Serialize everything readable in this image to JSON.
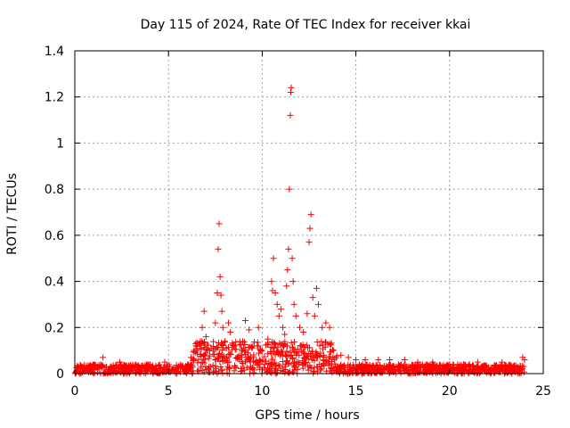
{
  "chart_data": {
    "type": "scatter",
    "title": "Day 115 of 2024, Rate Of TEC Index for receiver kkai",
    "xlabel": "GPS time / hours",
    "ylabel": "ROTI / TECUs",
    "xlim": [
      0,
      25
    ],
    "ylim": [
      0,
      1.4
    ],
    "x_ticks": [
      "0",
      "5",
      "10",
      "15",
      "20",
      "25"
    ],
    "y_ticks": [
      "0",
      "0.2",
      "0.4",
      "0.6",
      "0.8",
      "1",
      "1.2",
      "1.4"
    ],
    "grid": true,
    "marker": "+",
    "color": "#ff0000",
    "baseline_noise": {
      "x_range": [
        0,
        24
      ],
      "y_max": 0.04
    },
    "points": [
      [
        1.5,
        0.07
      ],
      [
        2.4,
        0.05
      ],
      [
        4.8,
        0.05
      ],
      [
        6.2,
        0.07
      ],
      [
        6.5,
        0.1
      ],
      [
        6.7,
        0.14
      ],
      [
        6.8,
        0.2
      ],
      [
        6.9,
        0.27
      ],
      [
        7.0,
        0.16
      ],
      [
        7.2,
        0.1
      ],
      [
        7.5,
        0.22
      ],
      [
        7.6,
        0.35
      ],
      [
        7.65,
        0.54
      ],
      [
        7.7,
        0.65
      ],
      [
        7.75,
        0.42
      ],
      [
        7.8,
        0.34
      ],
      [
        7.85,
        0.27
      ],
      [
        7.9,
        0.2
      ],
      [
        8.0,
        0.14
      ],
      [
        8.2,
        0.22
      ],
      [
        8.3,
        0.18
      ],
      [
        8.5,
        0.12
      ],
      [
        8.8,
        0.08
      ],
      [
        9.1,
        0.23
      ],
      [
        9.3,
        0.19
      ],
      [
        9.5,
        0.12
      ],
      [
        9.8,
        0.2
      ],
      [
        10.0,
        0.1
      ],
      [
        10.3,
        0.15
      ],
      [
        10.5,
        0.4
      ],
      [
        10.55,
        0.36
      ],
      [
        10.6,
        0.5
      ],
      [
        10.7,
        0.35
      ],
      [
        10.8,
        0.3
      ],
      [
        10.9,
        0.25
      ],
      [
        11.0,
        0.28
      ],
      [
        11.1,
        0.2
      ],
      [
        11.2,
        0.17
      ],
      [
        11.3,
        0.38
      ],
      [
        11.35,
        0.45
      ],
      [
        11.4,
        0.54
      ],
      [
        11.45,
        0.8
      ],
      [
        11.5,
        1.12
      ],
      [
        11.52,
        1.22
      ],
      [
        11.55,
        1.24
      ],
      [
        11.6,
        0.5
      ],
      [
        11.65,
        0.4
      ],
      [
        11.7,
        0.3
      ],
      [
        11.8,
        0.25
      ],
      [
        12.0,
        0.2
      ],
      [
        12.2,
        0.18
      ],
      [
        12.4,
        0.26
      ],
      [
        12.5,
        0.57
      ],
      [
        12.55,
        0.63
      ],
      [
        12.6,
        0.69
      ],
      [
        12.7,
        0.33
      ],
      [
        12.8,
        0.25
      ],
      [
        12.9,
        0.37
      ],
      [
        13.0,
        0.3
      ],
      [
        13.2,
        0.2
      ],
      [
        13.4,
        0.22
      ],
      [
        13.6,
        0.2
      ],
      [
        13.8,
        0.1
      ],
      [
        14.2,
        0.08
      ],
      [
        14.6,
        0.07
      ],
      [
        15.0,
        0.06
      ],
      [
        15.5,
        0.06
      ],
      [
        16.2,
        0.06
      ],
      [
        16.8,
        0.06
      ],
      [
        17.6,
        0.06
      ],
      [
        18.3,
        0.05
      ],
      [
        19.1,
        0.05
      ],
      [
        20.0,
        0.04
      ],
      [
        21.5,
        0.05
      ],
      [
        22.8,
        0.05
      ],
      [
        23.9,
        0.07
      ],
      [
        24.0,
        0.06
      ]
    ]
  }
}
